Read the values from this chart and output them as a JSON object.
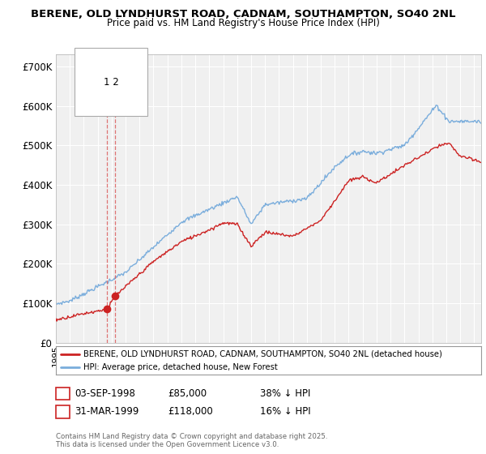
{
  "title1": "BERENE, OLD LYNDHURST ROAD, CADNAM, SOUTHAMPTON, SO40 2NL",
  "title2": "Price paid vs. HM Land Registry's House Price Index (HPI)",
  "legend_red": "BERENE, OLD LYNDHURST ROAD, CADNAM, SOUTHAMPTON, SO40 2NL (detached house)",
  "legend_blue": "HPI: Average price, detached house, New Forest",
  "footer": "Contains HM Land Registry data © Crown copyright and database right 2025.\nThis data is licensed under the Open Government Licence v3.0.",
  "red_color": "#cc2222",
  "blue_color": "#7aaddc",
  "dashed_color": "#dd6666",
  "purchase1_year": 1998.67,
  "purchase1_price": 85000,
  "purchase2_year": 1999.25,
  "purchase2_price": 118000,
  "ylim": [
    0,
    730000
  ],
  "yticks": [
    0,
    100000,
    200000,
    300000,
    400000,
    500000,
    600000,
    700000
  ],
  "ytick_labels": [
    "£0",
    "£100K",
    "£200K",
    "£300K",
    "£400K",
    "£500K",
    "£600K",
    "£700K"
  ],
  "xlim_start": 1995,
  "xlim_end": 2025.5,
  "row1_num": "1",
  "row1_date": "03-SEP-1998",
  "row1_price": "£85,000",
  "row1_hpi": "38% ↓ HPI",
  "row2_num": "2",
  "row2_date": "31-MAR-1999",
  "row2_price": "£118,000",
  "row2_hpi": "16% ↓ HPI"
}
